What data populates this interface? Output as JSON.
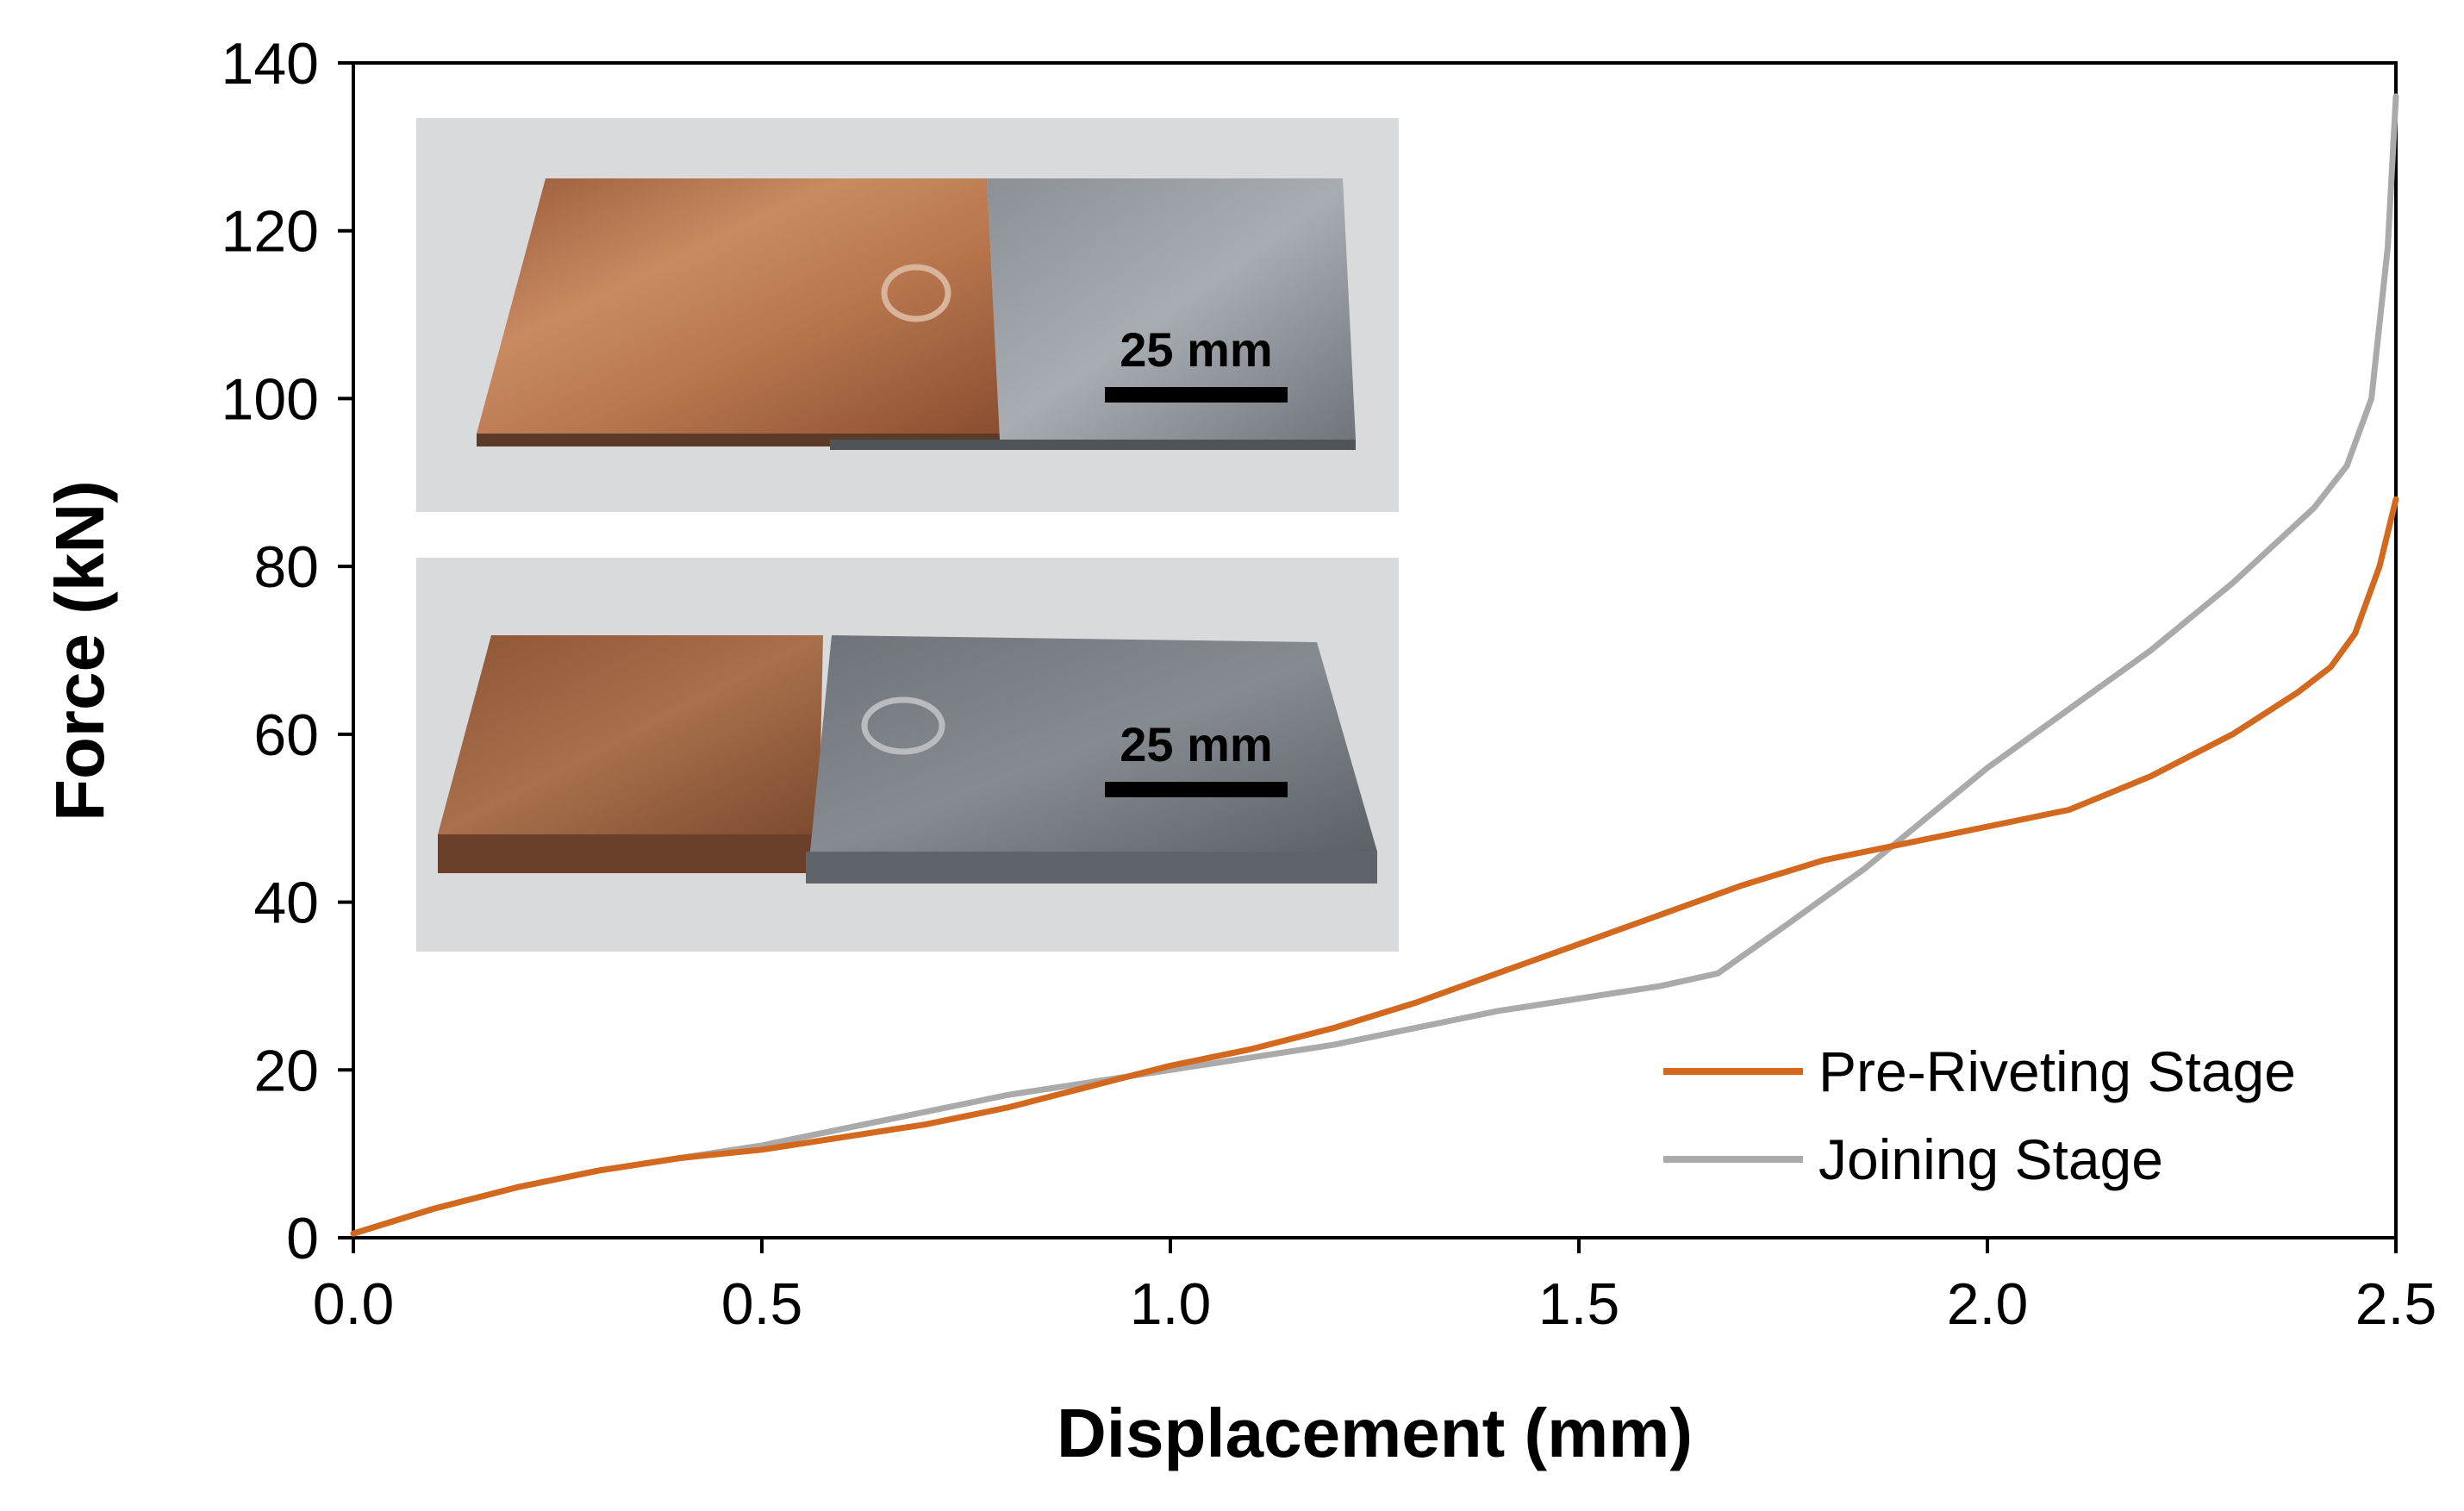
{
  "chart_data": {
    "type": "line",
    "title": "",
    "xlabel": "Displacement (mm)",
    "ylabel": "Force (kN)",
    "xlim": [
      0,
      2.5
    ],
    "ylim": [
      0,
      140
    ],
    "xticks": [
      "0.0",
      "0.5",
      "1.0",
      "1.5",
      "2.0",
      "2.5"
    ],
    "yticks": [
      "0",
      "20",
      "40",
      "60",
      "80",
      "100",
      "120",
      "140"
    ],
    "grid": false,
    "legend_position": "bottom-right",
    "series": [
      {
        "name": "Pre-Riveting Stage",
        "color": "#d3691e",
        "x": [
          0.0,
          0.1,
          0.2,
          0.3,
          0.4,
          0.5,
          0.6,
          0.7,
          0.8,
          0.9,
          1.0,
          1.1,
          1.2,
          1.3,
          1.4,
          1.5,
          1.6,
          1.7,
          1.8,
          1.9,
          2.0,
          2.1,
          2.2,
          2.3,
          2.38,
          2.42,
          2.45,
          2.48,
          2.5
        ],
        "y": [
          0.5,
          3.5,
          6.0,
          8.0,
          9.5,
          10.5,
          12.0,
          13.5,
          15.5,
          18.0,
          20.5,
          22.5,
          25.0,
          28.0,
          31.5,
          35.0,
          38.5,
          42.0,
          45.0,
          47.0,
          49.0,
          51.0,
          55.0,
          60.0,
          65.0,
          68.0,
          72.0,
          80.0,
          88.0
        ]
      },
      {
        "name": "Joining Stage",
        "color": "#aaaaaa",
        "x": [
          0.0,
          0.1,
          0.2,
          0.3,
          0.4,
          0.5,
          0.6,
          0.7,
          0.8,
          0.9,
          1.0,
          1.1,
          1.2,
          1.3,
          1.4,
          1.5,
          1.6,
          1.67,
          1.75,
          1.85,
          1.9,
          2.0,
          2.1,
          2.2,
          2.3,
          2.4,
          2.44,
          2.47,
          2.49,
          2.5
        ],
        "y": [
          0.5,
          3.5,
          6.0,
          8.0,
          9.5,
          11.0,
          13.0,
          15.0,
          17.0,
          18.5,
          20.0,
          21.5,
          23.0,
          25.0,
          27.0,
          28.5,
          30.0,
          31.5,
          37.0,
          44.0,
          48.0,
          56.0,
          63.0,
          70.0,
          78.0,
          87.0,
          92.0,
          100.0,
          118.0,
          136.0
        ]
      }
    ]
  },
  "inset_photos": [
    {
      "scale_bar_label": "25 mm"
    },
    {
      "scale_bar_label": "25 mm"
    }
  ]
}
